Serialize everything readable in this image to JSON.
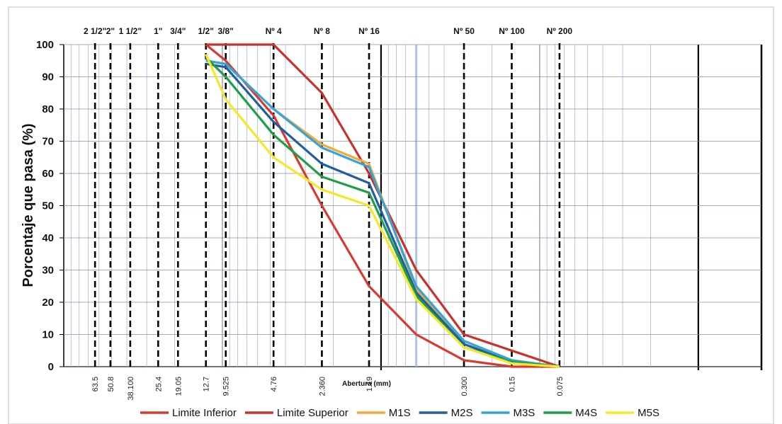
{
  "chart_data": {
    "type": "line",
    "title": "",
    "xlabel": "Abertura (mm)",
    "ylabel": "Porcentaje que pasa (%)",
    "ylim": [
      0,
      100
    ],
    "yticks": [
      0,
      10,
      20,
      30,
      40,
      50,
      60,
      70,
      80,
      90,
      100
    ],
    "grid": true,
    "legend_position": "bottom",
    "sieves": [
      {
        "name": "2 1/2\"",
        "opening": 63.5,
        "opening_label": "63.5"
      },
      {
        "name": "2\"",
        "opening": 50.8,
        "opening_label": "50.8"
      },
      {
        "name": "1 1/2\"",
        "opening": 38.1,
        "opening_label": "38.100"
      },
      {
        "name": "1\"",
        "opening": 25.4,
        "opening_label": "25.4"
      },
      {
        "name": "3/4\"",
        "opening": 19.05,
        "opening_label": "19.05"
      },
      {
        "name": "1/2\"",
        "opening": 12.7,
        "opening_label": "12.7"
      },
      {
        "name": "3/8\"",
        "opening": 9.525,
        "opening_label": "9.525"
      },
      {
        "name": "Nº 4",
        "opening": 4.76,
        "opening_label": "4.76"
      },
      {
        "name": "Nº 8",
        "opening": 2.36,
        "opening_label": "2.360"
      },
      {
        "name": "Nº 16",
        "opening": 1.19,
        "opening_label": "1.19"
      },
      {
        "name": "Nº 50",
        "opening": 0.3,
        "opening_label": "0.300"
      },
      {
        "name": "Nº 100",
        "opening": 0.15,
        "opening_label": "0.15"
      },
      {
        "name": "Nº 200",
        "opening": 0.075,
        "opening_label": "0.075"
      }
    ],
    "series": [
      {
        "name": "Limite Inferior",
        "color": "#d93a2e",
        "x": [
          12.7,
          9.525,
          4.76,
          2.36,
          1.19,
          0.6,
          0.3,
          0.15,
          0.075
        ],
        "y": [
          100,
          95,
          78,
          50,
          25,
          10,
          2,
          0,
          0
        ]
      },
      {
        "name": "Limite Superior",
        "color": "#c8322a",
        "x": [
          12.7,
          4.76,
          2.36,
          1.19,
          0.6,
          0.3,
          0.15,
          0.075
        ],
        "y": [
          100,
          100,
          85,
          60,
          30,
          10,
          5,
          0
        ]
      },
      {
        "name": "M1S",
        "color": "#f2a93b",
        "x": [
          12.7,
          9.525,
          4.76,
          2.36,
          1.19,
          0.6,
          0.3,
          0.15,
          0.075
        ],
        "y": [
          95,
          94,
          80,
          69,
          63,
          24,
          7,
          2,
          0
        ]
      },
      {
        "name": "M2S",
        "color": "#1f5f9e",
        "x": [
          12.7,
          9.525,
          4.76,
          2.36,
          1.19,
          0.6,
          0.3,
          0.15,
          0.075
        ],
        "y": [
          94,
          93,
          76,
          63,
          57,
          23,
          7,
          1.5,
          0
        ]
      },
      {
        "name": "M3S",
        "color": "#35a4d8",
        "x": [
          12.7,
          9.525,
          4.76,
          2.36,
          1.19,
          0.6,
          0.3,
          0.15,
          0.075
        ],
        "y": [
          95,
          94,
          80,
          68,
          62,
          25,
          8,
          2,
          0
        ]
      },
      {
        "name": "M4S",
        "color": "#1e9e47",
        "x": [
          12.7,
          9.525,
          4.76,
          2.36,
          1.19,
          0.6,
          0.3,
          0.15,
          0.075
        ],
        "y": [
          96,
          90,
          72,
          59,
          54,
          22,
          6,
          1.5,
          0
        ]
      },
      {
        "name": "M5S",
        "color": "#f5e82a",
        "x": [
          12.7,
          9.525,
          4.76,
          2.36,
          1.19,
          0.6,
          0.3,
          0.15,
          0.075
        ],
        "y": [
          97,
          83,
          65,
          55,
          50,
          21,
          6,
          1,
          0
        ]
      }
    ]
  }
}
